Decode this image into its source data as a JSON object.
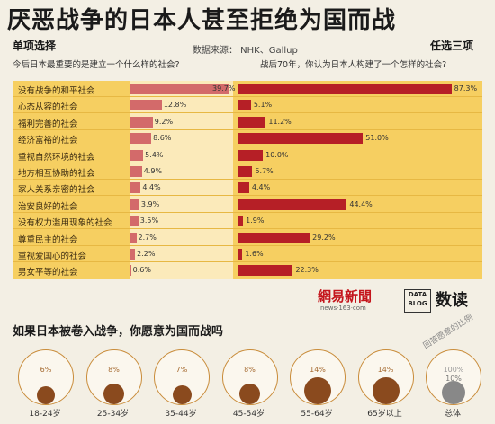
{
  "title": "厌恶战争的日本人甚至拒绝为国而战",
  "left_header": "单项选择",
  "right_header": "任选三项",
  "source": "数据来源：  NHK、Gallup",
  "left_question": "今后日本最重要的是建立一个什么样的社会?",
  "right_question": "战后70年，你认为日本人构建了一个怎样的社会?",
  "logo_netease": "網易新聞",
  "logo_netease_sub": "news·163·com",
  "logo_datablog": "DATA BLOG",
  "logo_shudu": "数读",
  "question2": "如果日本被卷入战争，你愿意为国而战吗",
  "arc_label": "回答愿意的比例",
  "chart_data": [
    {
      "type": "bar",
      "orientation": "horizontal",
      "categories": [
        "没有战争的和平社会",
        "心态从容的社会",
        "福利完善的社会",
        "经济富裕的社会",
        "重视自然环境的社会",
        "地方相互协助的社会",
        "家人关系亲密的社会",
        "治安良好的社会",
        "没有权力滥用现象的社会",
        "尊重民主的社会",
        "重视爱国心的社会",
        "男女平等的社会"
      ],
      "series": [
        {
          "name": "今后日本最重要的是建立一个什么样的社会?",
          "values": [
            39.7,
            12.8,
            9.2,
            8.6,
            5.4,
            4.9,
            4.4,
            3.9,
            3.5,
            2.7,
            2.2,
            0.6
          ],
          "color": "#d36a6a"
        },
        {
          "name": "战后70年，你认为日本人构建了一个怎样的社会?",
          "values": [
            87.3,
            5.1,
            11.2,
            51.0,
            10.0,
            5.7,
            4.4,
            44.4,
            1.9,
            29.2,
            1.6,
            22.3
          ],
          "color": "#b61f26"
        }
      ],
      "value_labels": {
        "left": [
          "39.7%",
          "12.8%",
          "9.2%",
          "8.6%",
          "5.4%",
          "4.9%",
          "4.4%",
          "3.9%",
          "3.5%",
          "2.7%",
          "2.2%",
          "0.6%"
        ],
        "right": [
          "87.3%",
          "5.1%",
          "11.2%",
          "51.0%",
          "10.0%",
          "5.7%",
          "4.4%",
          "44.4%",
          "1.9%",
          "29.2%",
          "1.6%",
          "22.3%"
        ]
      },
      "unit": "%"
    },
    {
      "type": "pie",
      "title": "如果日本被卷入战争，你愿意为国而战吗",
      "categories": [
        "18-24岁",
        "25-34岁",
        "35-44岁",
        "45-54岁",
        "55-64岁",
        "65岁以上",
        "总体"
      ],
      "values": [
        6,
        8,
        7,
        8,
        14,
        14,
        10
      ],
      "labels": [
        "6%",
        "8%",
        "7%",
        "8%",
        "14%",
        "14%",
        "10%"
      ],
      "reference": {
        "value": 100,
        "label": "100%"
      },
      "fill_color": "#8a4a1e",
      "total_color": "#888888"
    }
  ]
}
